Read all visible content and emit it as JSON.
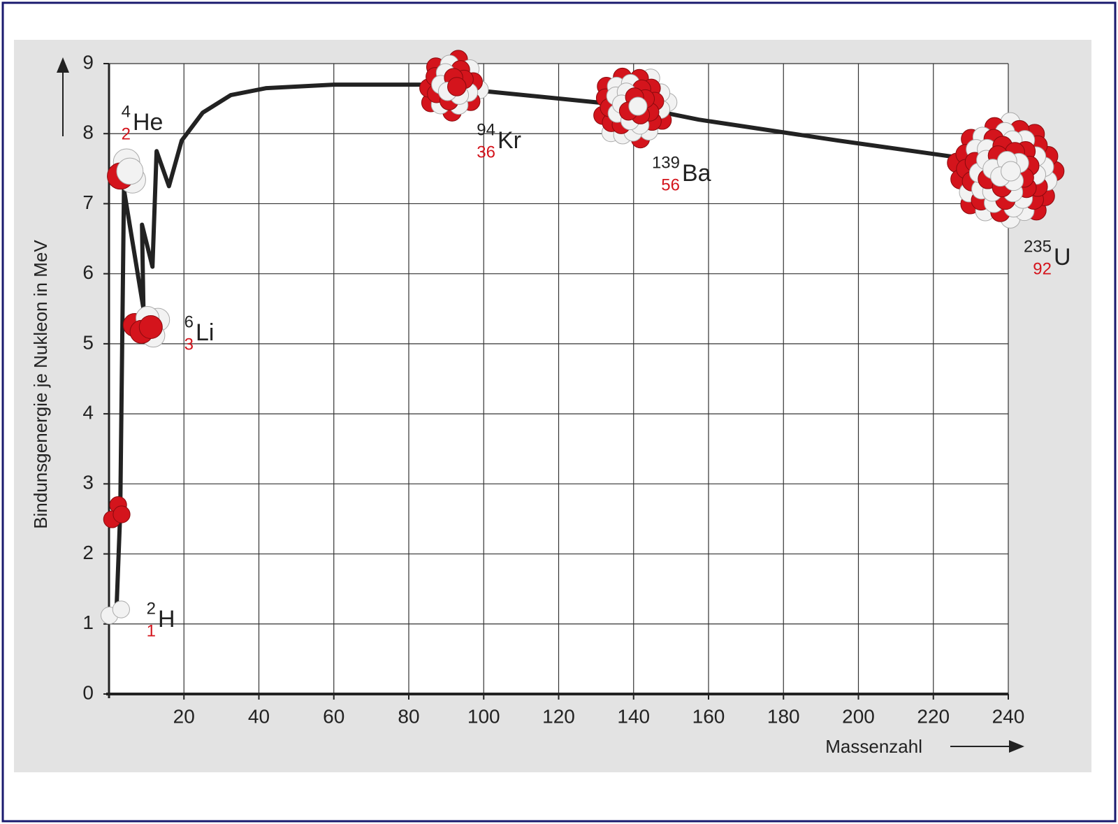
{
  "chart_data": {
    "type": "line",
    "y_label": "Bindunsgenergie je Nukleon in MeV",
    "x_label": "Massenzahl",
    "x": [
      2,
      3,
      4,
      9.2,
      8.8,
      11.6,
      12.7,
      16,
      19.4,
      25,
      32.5,
      42,
      60,
      83,
      101.5,
      138.8,
      157.4,
      194.7,
      228
    ],
    "series": [
      {
        "color": "#222222",
        "values": [
          1.2,
          2.6,
          7.2,
          5.5,
          6.7,
          6.1,
          7.75,
          7.25,
          7.9,
          8.3,
          8.55,
          8.65,
          8.7,
          8.7,
          8.6,
          8.4,
          8.2,
          7.9,
          7.65
        ]
      }
    ],
    "xlim": [
      0,
      240
    ],
    "ylim": [
      0,
      9
    ],
    "xticks": [
      20,
      40,
      60,
      80,
      100,
      120,
      140,
      160,
      180,
      200,
      220,
      240
    ],
    "yticks": [
      0,
      1,
      2,
      3,
      4,
      5,
      6,
      7,
      8,
      9
    ],
    "grid": true,
    "annotations": [
      {
        "mass": "2",
        "number": "1",
        "symbol": "H"
      },
      {
        "mass": "4",
        "number": "2",
        "symbol": "He"
      },
      {
        "mass": "6",
        "number": "3",
        "symbol": "Li"
      },
      {
        "mass": "94",
        "number": "36",
        "symbol": "Kr"
      },
      {
        "mass": "139",
        "number": "56",
        "symbol": "Ba"
      },
      {
        "mass": "235",
        "number": "92",
        "symbol": "U"
      }
    ]
  }
}
